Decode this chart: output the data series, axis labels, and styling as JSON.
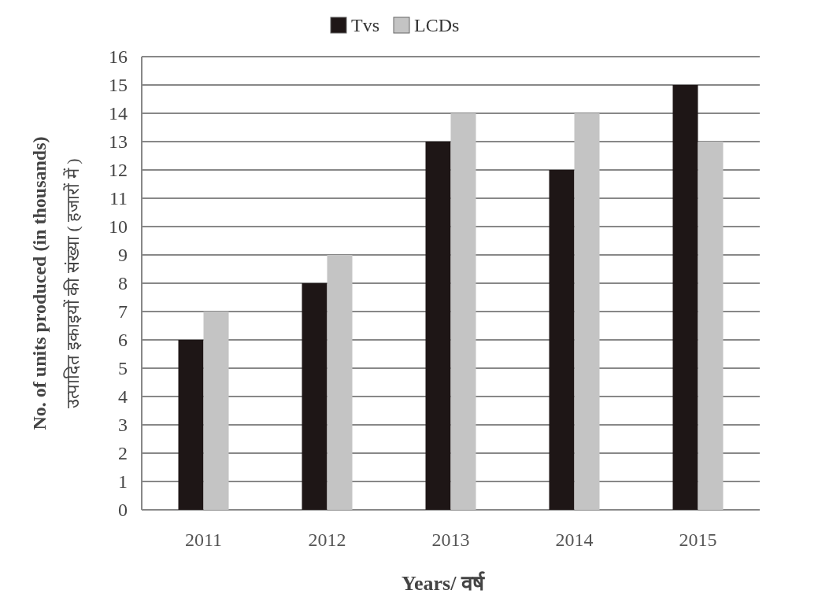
{
  "chart_data": {
    "type": "bar",
    "categories": [
      "2011",
      "2012",
      "2013",
      "2014",
      "2015"
    ],
    "series": [
      {
        "name": "Tvs",
        "color": "#1e1616",
        "values": [
          6,
          8,
          13,
          12,
          15
        ]
      },
      {
        "name": "LCDs",
        "color": "#c4c4c4",
        "values": [
          7,
          9,
          14,
          14,
          13
        ]
      }
    ],
    "ylabel": "No. of units produced (in thousands)\nउत्पादित इकाइयों की संख्या ( हजारों में )",
    "xlabel": "Years/ वर्ष",
    "ylim": [
      0,
      16
    ],
    "yticks": [
      0,
      1,
      2,
      3,
      4,
      5,
      6,
      7,
      8,
      9,
      10,
      11,
      12,
      13,
      14,
      15,
      16
    ],
    "grid": "y",
    "legend": "top"
  }
}
